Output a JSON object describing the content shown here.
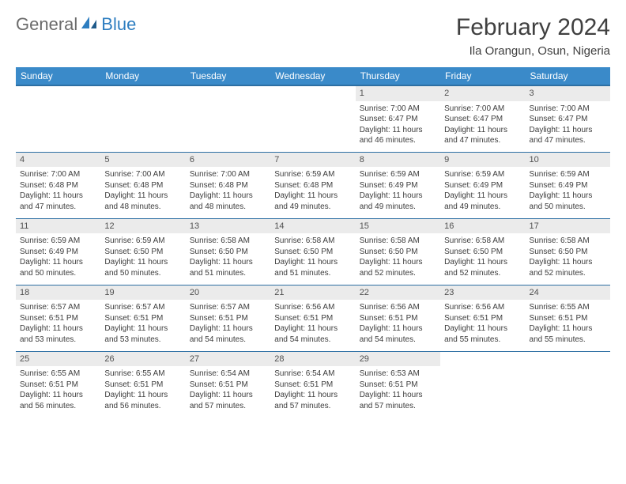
{
  "logo": {
    "text1": "General",
    "text2": "Blue"
  },
  "title": "February 2024",
  "location": "Ila Orangun, Osun, Nigeria",
  "colors": {
    "header_bg": "#3a8ac9",
    "header_border": "#2d6fa3",
    "daynum_bg": "#ebebeb",
    "text": "#3c3c3c",
    "title_text": "#404040",
    "logo_gray": "#6b6b6b",
    "logo_blue": "#2d7dc0"
  },
  "weekdays": [
    "Sunday",
    "Monday",
    "Tuesday",
    "Wednesday",
    "Thursday",
    "Friday",
    "Saturday"
  ],
  "weeks": [
    [
      {
        "day": "",
        "sr": "",
        "ss": "",
        "dl1": "",
        "dl2": ""
      },
      {
        "day": "",
        "sr": "",
        "ss": "",
        "dl1": "",
        "dl2": ""
      },
      {
        "day": "",
        "sr": "",
        "ss": "",
        "dl1": "",
        "dl2": ""
      },
      {
        "day": "",
        "sr": "",
        "ss": "",
        "dl1": "",
        "dl2": ""
      },
      {
        "day": "1",
        "sr": "Sunrise: 7:00 AM",
        "ss": "Sunset: 6:47 PM",
        "dl1": "Daylight: 11 hours",
        "dl2": "and 46 minutes."
      },
      {
        "day": "2",
        "sr": "Sunrise: 7:00 AM",
        "ss": "Sunset: 6:47 PM",
        "dl1": "Daylight: 11 hours",
        "dl2": "and 47 minutes."
      },
      {
        "day": "3",
        "sr": "Sunrise: 7:00 AM",
        "ss": "Sunset: 6:47 PM",
        "dl1": "Daylight: 11 hours",
        "dl2": "and 47 minutes."
      }
    ],
    [
      {
        "day": "4",
        "sr": "Sunrise: 7:00 AM",
        "ss": "Sunset: 6:48 PM",
        "dl1": "Daylight: 11 hours",
        "dl2": "and 47 minutes."
      },
      {
        "day": "5",
        "sr": "Sunrise: 7:00 AM",
        "ss": "Sunset: 6:48 PM",
        "dl1": "Daylight: 11 hours",
        "dl2": "and 48 minutes."
      },
      {
        "day": "6",
        "sr": "Sunrise: 7:00 AM",
        "ss": "Sunset: 6:48 PM",
        "dl1": "Daylight: 11 hours",
        "dl2": "and 48 minutes."
      },
      {
        "day": "7",
        "sr": "Sunrise: 6:59 AM",
        "ss": "Sunset: 6:48 PM",
        "dl1": "Daylight: 11 hours",
        "dl2": "and 49 minutes."
      },
      {
        "day": "8",
        "sr": "Sunrise: 6:59 AM",
        "ss": "Sunset: 6:49 PM",
        "dl1": "Daylight: 11 hours",
        "dl2": "and 49 minutes."
      },
      {
        "day": "9",
        "sr": "Sunrise: 6:59 AM",
        "ss": "Sunset: 6:49 PM",
        "dl1": "Daylight: 11 hours",
        "dl2": "and 49 minutes."
      },
      {
        "day": "10",
        "sr": "Sunrise: 6:59 AM",
        "ss": "Sunset: 6:49 PM",
        "dl1": "Daylight: 11 hours",
        "dl2": "and 50 minutes."
      }
    ],
    [
      {
        "day": "11",
        "sr": "Sunrise: 6:59 AM",
        "ss": "Sunset: 6:49 PM",
        "dl1": "Daylight: 11 hours",
        "dl2": "and 50 minutes."
      },
      {
        "day": "12",
        "sr": "Sunrise: 6:59 AM",
        "ss": "Sunset: 6:50 PM",
        "dl1": "Daylight: 11 hours",
        "dl2": "and 50 minutes."
      },
      {
        "day": "13",
        "sr": "Sunrise: 6:58 AM",
        "ss": "Sunset: 6:50 PM",
        "dl1": "Daylight: 11 hours",
        "dl2": "and 51 minutes."
      },
      {
        "day": "14",
        "sr": "Sunrise: 6:58 AM",
        "ss": "Sunset: 6:50 PM",
        "dl1": "Daylight: 11 hours",
        "dl2": "and 51 minutes."
      },
      {
        "day": "15",
        "sr": "Sunrise: 6:58 AM",
        "ss": "Sunset: 6:50 PM",
        "dl1": "Daylight: 11 hours",
        "dl2": "and 52 minutes."
      },
      {
        "day": "16",
        "sr": "Sunrise: 6:58 AM",
        "ss": "Sunset: 6:50 PM",
        "dl1": "Daylight: 11 hours",
        "dl2": "and 52 minutes."
      },
      {
        "day": "17",
        "sr": "Sunrise: 6:58 AM",
        "ss": "Sunset: 6:50 PM",
        "dl1": "Daylight: 11 hours",
        "dl2": "and 52 minutes."
      }
    ],
    [
      {
        "day": "18",
        "sr": "Sunrise: 6:57 AM",
        "ss": "Sunset: 6:51 PM",
        "dl1": "Daylight: 11 hours",
        "dl2": "and 53 minutes."
      },
      {
        "day": "19",
        "sr": "Sunrise: 6:57 AM",
        "ss": "Sunset: 6:51 PM",
        "dl1": "Daylight: 11 hours",
        "dl2": "and 53 minutes."
      },
      {
        "day": "20",
        "sr": "Sunrise: 6:57 AM",
        "ss": "Sunset: 6:51 PM",
        "dl1": "Daylight: 11 hours",
        "dl2": "and 54 minutes."
      },
      {
        "day": "21",
        "sr": "Sunrise: 6:56 AM",
        "ss": "Sunset: 6:51 PM",
        "dl1": "Daylight: 11 hours",
        "dl2": "and 54 minutes."
      },
      {
        "day": "22",
        "sr": "Sunrise: 6:56 AM",
        "ss": "Sunset: 6:51 PM",
        "dl1": "Daylight: 11 hours",
        "dl2": "and 54 minutes."
      },
      {
        "day": "23",
        "sr": "Sunrise: 6:56 AM",
        "ss": "Sunset: 6:51 PM",
        "dl1": "Daylight: 11 hours",
        "dl2": "and 55 minutes."
      },
      {
        "day": "24",
        "sr": "Sunrise: 6:55 AM",
        "ss": "Sunset: 6:51 PM",
        "dl1": "Daylight: 11 hours",
        "dl2": "and 55 minutes."
      }
    ],
    [
      {
        "day": "25",
        "sr": "Sunrise: 6:55 AM",
        "ss": "Sunset: 6:51 PM",
        "dl1": "Daylight: 11 hours",
        "dl2": "and 56 minutes."
      },
      {
        "day": "26",
        "sr": "Sunrise: 6:55 AM",
        "ss": "Sunset: 6:51 PM",
        "dl1": "Daylight: 11 hours",
        "dl2": "and 56 minutes."
      },
      {
        "day": "27",
        "sr": "Sunrise: 6:54 AM",
        "ss": "Sunset: 6:51 PM",
        "dl1": "Daylight: 11 hours",
        "dl2": "and 57 minutes."
      },
      {
        "day": "28",
        "sr": "Sunrise: 6:54 AM",
        "ss": "Sunset: 6:51 PM",
        "dl1": "Daylight: 11 hours",
        "dl2": "and 57 minutes."
      },
      {
        "day": "29",
        "sr": "Sunrise: 6:53 AM",
        "ss": "Sunset: 6:51 PM",
        "dl1": "Daylight: 11 hours",
        "dl2": "and 57 minutes."
      },
      {
        "day": "",
        "sr": "",
        "ss": "",
        "dl1": "",
        "dl2": ""
      },
      {
        "day": "",
        "sr": "",
        "ss": "",
        "dl1": "",
        "dl2": ""
      }
    ]
  ]
}
